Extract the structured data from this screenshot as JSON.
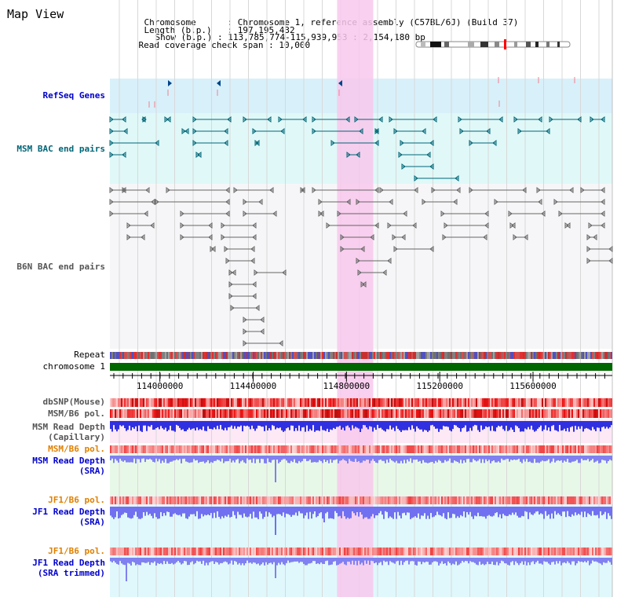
{
  "title": "Map View",
  "header": {
    "lines": [
      {
        "key": "Chromosome",
        "value": "Chromosome 1, reference assembly (C57BL/6J) (Build 37)"
      },
      {
        "key": "Length (b.p.)",
        "value": "197,195,432"
      },
      {
        "key": "Show (b.p.)",
        "value": "113,785,774-115,939,953 : 2,154,180 bp"
      },
      {
        "key": "Read coverage check span",
        "value": "10,000"
      }
    ]
  },
  "tracks": {
    "refseq": "RefSeq Genes",
    "msm_bac": "MSM BAC end pairs",
    "b6n_bac": "B6N BAC end pairs",
    "repeat": "Repeat",
    "chromosome": "chromosome 1",
    "dbsnp": "dbSNP(Mouse)",
    "msm_b6_pol": "MSM/B6 pol.",
    "msm_depth_cap_1": "MSM Read Depth",
    "msm_depth_cap_2": "(Capillary)",
    "msm_b6_pol_2": "MSM/B6 pol.",
    "msm_depth_sra_1": "MSM Read Depth",
    "msm_depth_sra_2": "(SRA)",
    "jf1_b6_pol": "JF1/B6 pol.",
    "jf1_depth_sra_1": "JF1 Read Depth",
    "jf1_depth_sra_2": "(SRA)",
    "jf1_b6_pol_2": "JF1/B6 pol.",
    "jf1_depth_trim_1": "JF1 Read Depth",
    "jf1_depth_trim_2": "(SRA trimmed)"
  },
  "axis": {
    "ticks": [
      "114000000",
      "114400000",
      "114800000",
      "115200000",
      "115600000"
    ],
    "tick_values": [
      114000000,
      114400000,
      114800000,
      115200000,
      115600000
    ],
    "range": [
      113785774,
      115939953
    ]
  },
  "highlight": {
    "start": 114760000,
    "end": 114915000
  },
  "colors": {
    "label_blue": "#0000cc",
    "label_teal": "#006677",
    "label_gray": "#555555",
    "label_orange": "#e08000",
    "refseq_bg": "#d8f0fa",
    "msm_bg": "#e0f8f8",
    "highlight": "#f8c8ec",
    "chrom_green": "#006600"
  }
}
